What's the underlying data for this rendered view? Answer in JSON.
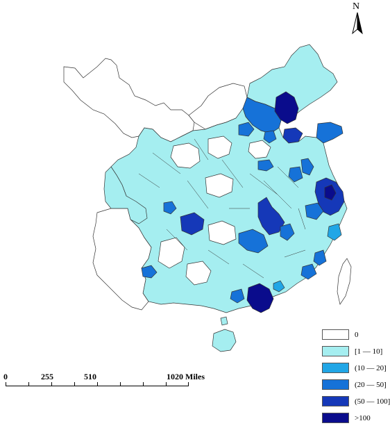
{
  "north_label": "N",
  "legend": {
    "items": [
      {
        "label": "0",
        "color": "#ffffff"
      },
      {
        "label": "[1 — 10]",
        "color": "#a5eef0"
      },
      {
        "label": "(10 — 20]",
        "color": "#21a6e6"
      },
      {
        "label": "(20 — 50]",
        "color": "#1672d8"
      },
      {
        "label": "(50 — 100]",
        "color": "#1538b8"
      },
      {
        "label": ">100",
        "color": "#0a0c8c"
      }
    ]
  },
  "scale": {
    "labels": [
      "0",
      "255",
      "510",
      "1020 Miles"
    ]
  },
  "colors": {
    "boundary": "#333333",
    "light": "#a5eef0",
    "mid": "#21a6e6",
    "mid2": "#1672d8",
    "dark": "#1538b8",
    "darkest": "#0a0c8c"
  },
  "regions": [
    {
      "name": "northeast-light",
      "class": "1-10"
    },
    {
      "name": "north-coast",
      "class": "20-50"
    },
    {
      "name": "capital-darkest",
      "class": ">100"
    },
    {
      "name": "peninsula",
      "class": "20-50"
    },
    {
      "name": "central-light",
      "class": "1-10"
    },
    {
      "name": "southwest-light",
      "class": "1-10"
    },
    {
      "name": "basin",
      "class": "50-100"
    },
    {
      "name": "central-dark",
      "class": "50-100"
    },
    {
      "name": "delta-dark",
      "class": "50-100"
    },
    {
      "name": "south-darkest",
      "class": ">100"
    },
    {
      "name": "island",
      "class": "1-10"
    },
    {
      "name": "southwest-mid",
      "class": "20-50"
    },
    {
      "name": "east-mid",
      "class": "20-50"
    },
    {
      "name": "taiwan-light",
      "class": "0"
    }
  ]
}
